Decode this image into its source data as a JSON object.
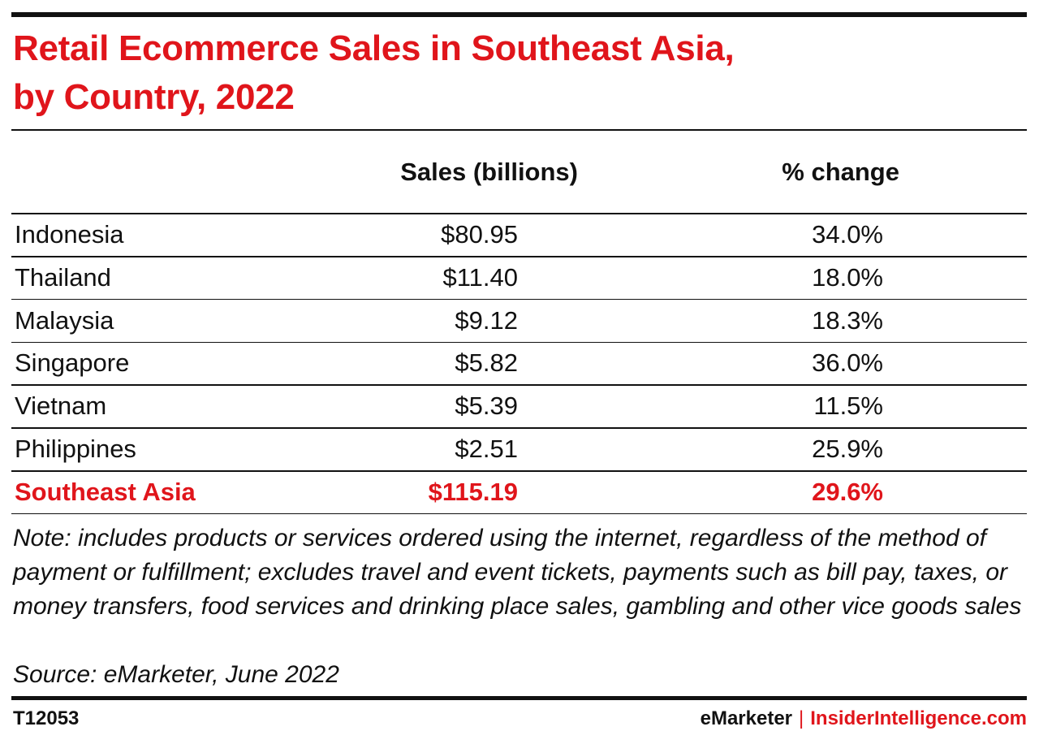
{
  "chart_data": {
    "type": "table",
    "title": "Retail Ecommerce Sales in Southeast Asia,\nby Country, 2022",
    "columns": [
      "Sales (billions)",
      "% change"
    ],
    "rows": [
      {
        "label": "Indonesia",
        "sales": "$80.95",
        "change": "34.0%"
      },
      {
        "label": "Thailand",
        "sales": "$11.40",
        "change": "18.0%"
      },
      {
        "label": "Malaysia",
        "sales": "$9.12",
        "change": "18.3%"
      },
      {
        "label": "Singapore",
        "sales": "$5.82",
        "change": "36.0%"
      },
      {
        "label": "Vietnam",
        "sales": "$5.39",
        "change": "11.5%"
      },
      {
        "label": "Philippines",
        "sales": "$2.51",
        "change": "25.9%"
      }
    ],
    "total": {
      "label": "Southeast Asia",
      "sales": "$115.19",
      "change": "29.6%"
    },
    "note": "Note: includes products or services ordered using the internet, regardless of the method of payment or fulfillment; excludes travel and event tickets, payments such as bill pay, taxes, or money transfers, food services and drinking place sales, gambling and other vice goods sales",
    "source": "Source: eMarketer, June 2022"
  },
  "footer": {
    "chart_id": "T12053",
    "brand_left": "eMarketer",
    "separator": "|",
    "brand_right": "InsiderIntelligence.com"
  },
  "colors": {
    "accent": "#e0151b",
    "text": "#111111",
    "background": "#ffffff"
  }
}
